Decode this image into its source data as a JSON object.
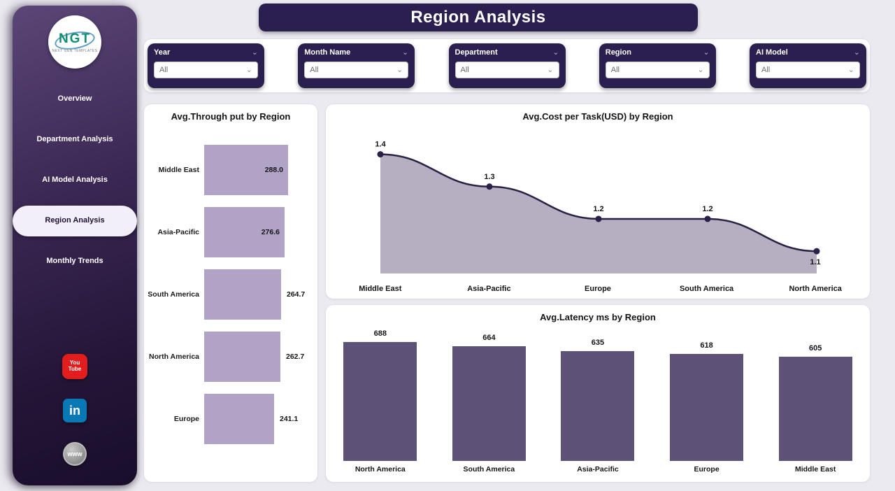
{
  "header": {
    "title": "Region Analysis"
  },
  "sidebar": {
    "logo": {
      "text": "NGT",
      "subtext": "NEXT GEN TEMPLATES"
    },
    "items": [
      {
        "label": "Overview",
        "active": false
      },
      {
        "label": "Department Analysis",
        "active": false
      },
      {
        "label": "AI Model Analysis",
        "active": false
      },
      {
        "label": "Region Analysis",
        "active": true
      },
      {
        "label": "Monthly Trends",
        "active": false
      }
    ],
    "social": [
      {
        "name": "youtube",
        "label": "You Tube"
      },
      {
        "name": "linkedin",
        "label": "in"
      },
      {
        "name": "website",
        "label": "www"
      }
    ]
  },
  "filters": [
    {
      "label": "Year",
      "value": "All"
    },
    {
      "label": "Month Name",
      "value": "All"
    },
    {
      "label": "Department",
      "value": "All"
    },
    {
      "label": "Region",
      "value": "All"
    },
    {
      "label": "AI Model",
      "value": "All"
    }
  ],
  "chart_data": [
    {
      "type": "bar",
      "orientation": "horizontal",
      "title": "Avg.Through put by Region",
      "categories": [
        "Middle East",
        "Asia-Pacific",
        "South America",
        "North America",
        "Europe"
      ],
      "values": [
        288.0,
        276.6,
        264.7,
        262.7,
        241.1
      ],
      "value_labels": [
        "288.0",
        "276.6",
        "264.7",
        "262.7",
        "241.1"
      ],
      "bar_color": "#b1a3c6",
      "xlim": [
        0,
        300
      ],
      "grid": false
    },
    {
      "type": "area",
      "title": "Avg.Cost per Task(USD) by Region",
      "categories": [
        "Middle East",
        "Asia-Pacific",
        "Europe",
        "South America",
        "North America"
      ],
      "values": [
        1.4,
        1.3,
        1.2,
        1.2,
        1.1
      ],
      "value_labels": [
        "1.4",
        "1.3",
        "1.2",
        "1.2",
        "1.1"
      ],
      "line_color": "#2a2246",
      "fill_color": "#b6afc1",
      "marker_color": "#2a2246",
      "ylim": [
        1.0,
        1.5
      ],
      "grid": false
    },
    {
      "type": "bar",
      "orientation": "vertical",
      "title": "Avg.Latency ms by Region",
      "categories": [
        "North America",
        "South America",
        "Asia-Pacific",
        "Europe",
        "Middle East"
      ],
      "values": [
        688,
        664,
        635,
        618,
        605
      ],
      "value_labels": [
        "688",
        "664",
        "635",
        "618",
        "605"
      ],
      "bar_color": "#5e5177",
      "ylim": [
        0,
        700
      ],
      "grid": false
    }
  ],
  "colors": {
    "sidebar_dark": "#241537",
    "panel_dark": "#2a1f4e",
    "hbar": "#b1a3c6",
    "vbar": "#5e5177",
    "line": "#2a2246",
    "area_fill": "#b6afc1",
    "youtube_red": "#e11d1d",
    "linkedin_blue": "#0a78b5",
    "background": "#eceaf1"
  }
}
